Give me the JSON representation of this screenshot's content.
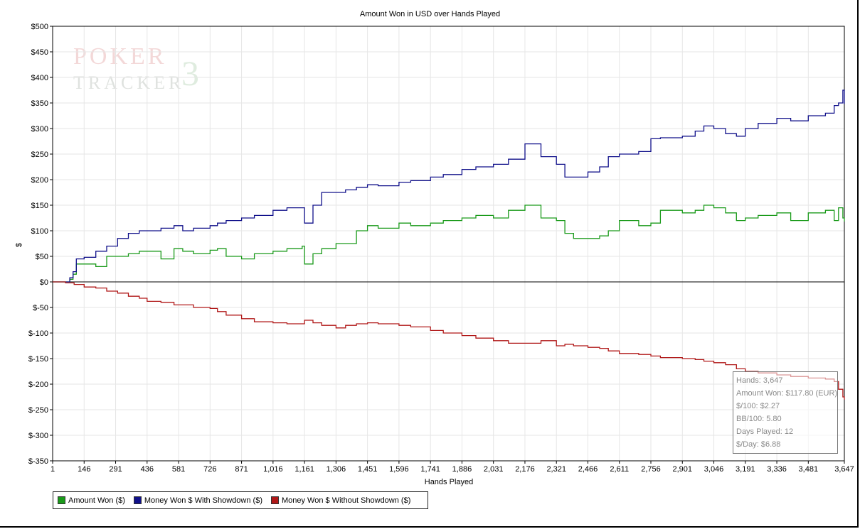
{
  "watermark": {
    "line1": "POKER",
    "line2": "TRACKER",
    "mark": "3"
  },
  "chart_data": {
    "type": "line",
    "title": "Amount Won in USD over Hands Played",
    "xlabel": "Hands Played",
    "ylabel": "$",
    "xlim": [
      1,
      3647
    ],
    "ylim": [
      -350,
      500
    ],
    "x_ticks": [
      "1",
      "146",
      "291",
      "436",
      "581",
      "726",
      "871",
      "1,016",
      "1,161",
      "1,306",
      "1,451",
      "1,596",
      "1,741",
      "1,886",
      "2,031",
      "2,176",
      "2,321",
      "2,466",
      "2,611",
      "2,756",
      "2,901",
      "3,046",
      "3,191",
      "3,336",
      "3,481",
      "3,647"
    ],
    "x_tick_values": [
      1,
      146,
      291,
      436,
      581,
      726,
      871,
      1016,
      1161,
      1306,
      1451,
      1596,
      1741,
      1886,
      2031,
      2176,
      2321,
      2466,
      2611,
      2756,
      2901,
      3046,
      3191,
      3336,
      3481,
      3647
    ],
    "y_ticks": [
      "$500",
      "$450",
      "$400",
      "$350",
      "$300",
      "$250",
      "$200",
      "$150",
      "$100",
      "$50",
      "$0",
      "$-50",
      "$-100",
      "$-150",
      "$-200",
      "$-250",
      "$-300",
      "$-350"
    ],
    "y_tick_values": [
      500,
      450,
      400,
      350,
      300,
      250,
      200,
      150,
      100,
      50,
      0,
      -50,
      -100,
      -150,
      -200,
      -250,
      -300,
      -350
    ],
    "grid": true,
    "legend_position": "bottom-left",
    "series": [
      {
        "name": "Amount Won ($)",
        "color": "#1a9a1a",
        "x": [
          1,
          60,
          80,
          95,
          110,
          146,
          200,
          250,
          300,
          350,
          400,
          436,
          500,
          560,
          600,
          650,
          726,
          760,
          800,
          871,
          930,
          1016,
          1080,
          1150,
          1161,
          1200,
          1240,
          1306,
          1350,
          1400,
          1451,
          1500,
          1596,
          1650,
          1741,
          1800,
          1886,
          1950,
          2031,
          2100,
          2176,
          2250,
          2321,
          2360,
          2400,
          2466,
          2520,
          2560,
          2611,
          2700,
          2756,
          2800,
          2901,
          2960,
          3000,
          3046,
          3100,
          3150,
          3191,
          3250,
          3336,
          3400,
          3481,
          3560,
          3600,
          3620,
          3640,
          3647
        ],
        "y": [
          0,
          0,
          5,
          15,
          35,
          35,
          30,
          50,
          50,
          55,
          60,
          60,
          45,
          65,
          60,
          55,
          62,
          65,
          50,
          45,
          55,
          60,
          65,
          70,
          35,
          55,
          65,
          75,
          75,
          100,
          110,
          105,
          115,
          110,
          115,
          120,
          125,
          130,
          125,
          140,
          150,
          125,
          120,
          95,
          85,
          85,
          90,
          100,
          120,
          110,
          115,
          140,
          135,
          140,
          150,
          145,
          135,
          120,
          125,
          130,
          135,
          120,
          135,
          140,
          120,
          145,
          125,
          118
        ]
      },
      {
        "name": "Money Won $ With Showdown ($)",
        "color": "#10108a",
        "x": [
          1,
          60,
          80,
          95,
          110,
          146,
          200,
          250,
          300,
          350,
          400,
          436,
          500,
          560,
          600,
          650,
          726,
          760,
          800,
          871,
          930,
          1016,
          1080,
          1150,
          1161,
          1200,
          1240,
          1306,
          1350,
          1400,
          1451,
          1500,
          1596,
          1650,
          1741,
          1800,
          1886,
          1950,
          2031,
          2100,
          2176,
          2250,
          2321,
          2360,
          2400,
          2466,
          2520,
          2560,
          2611,
          2700,
          2756,
          2800,
          2901,
          2960,
          3000,
          3046,
          3100,
          3150,
          3191,
          3250,
          3336,
          3400,
          3481,
          3560,
          3600,
          3620,
          3640,
          3647
        ],
        "y": [
          0,
          0,
          8,
          20,
          45,
          48,
          60,
          70,
          85,
          95,
          100,
          100,
          105,
          110,
          100,
          105,
          110,
          115,
          120,
          125,
          130,
          140,
          145,
          145,
          115,
          150,
          175,
          175,
          180,
          185,
          190,
          188,
          195,
          198,
          205,
          210,
          220,
          225,
          230,
          240,
          270,
          245,
          230,
          205,
          205,
          215,
          225,
          245,
          250,
          255,
          280,
          282,
          285,
          295,
          305,
          300,
          290,
          285,
          300,
          310,
          320,
          315,
          325,
          330,
          345,
          350,
          375,
          348
        ]
      },
      {
        "name": "Money Won $ Without Showdown ($)",
        "color": "#b01818",
        "x": [
          1,
          60,
          100,
          146,
          200,
          250,
          300,
          350,
          400,
          436,
          500,
          560,
          600,
          650,
          726,
          760,
          800,
          871,
          930,
          1016,
          1080,
          1161,
          1200,
          1240,
          1306,
          1350,
          1400,
          1451,
          1500,
          1596,
          1650,
          1741,
          1800,
          1886,
          1950,
          2031,
          2100,
          2176,
          2250,
          2321,
          2360,
          2400,
          2466,
          2520,
          2560,
          2611,
          2700,
          2756,
          2800,
          2901,
          2960,
          3000,
          3046,
          3100,
          3150,
          3191,
          3250,
          3336,
          3400,
          3481,
          3560,
          3600,
          3620,
          3640,
          3647
        ],
        "y": [
          0,
          -2,
          -5,
          -10,
          -12,
          -18,
          -22,
          -28,
          -32,
          -38,
          -40,
          -45,
          -45,
          -50,
          -52,
          -58,
          -65,
          -72,
          -78,
          -80,
          -82,
          -75,
          -80,
          -85,
          -90,
          -85,
          -82,
          -80,
          -82,
          -85,
          -88,
          -95,
          -100,
          -105,
          -110,
          -115,
          -120,
          -120,
          -115,
          -125,
          -122,
          -125,
          -128,
          -130,
          -135,
          -140,
          -142,
          -145,
          -148,
          -150,
          -152,
          -155,
          -158,
          -162,
          -170,
          -175,
          -178,
          -182,
          -185,
          -188,
          -190,
          -195,
          -210,
          -225,
          -230
        ]
      }
    ]
  },
  "legend": {
    "items": [
      {
        "label": "Amount Won ($)",
        "color": "#1a9a1a"
      },
      {
        "label": "Money Won $ With Showdown ($)",
        "color": "#10108a"
      },
      {
        "label": "Money Won $ Without Showdown ($)",
        "color": "#b01818"
      }
    ]
  },
  "tooltip": {
    "hands": "Hands: 3,647",
    "amount_won": "Amount Won: $117.80 (EUR)",
    "per_100": "$/100: $2.27",
    "bb_per_100": "BB/100: 5.80",
    "days_played": "Days Played: 12",
    "per_day": "$/Day: $6.88"
  }
}
